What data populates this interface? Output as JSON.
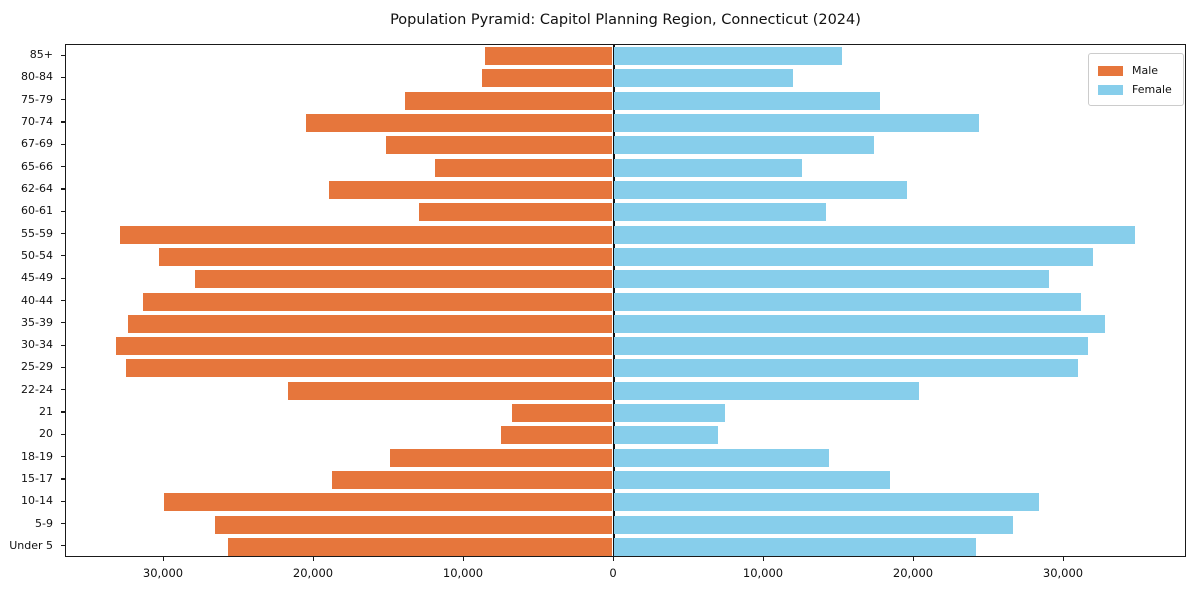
{
  "title": "Population Pyramid: Capitol Planning Region, Connecticut (2024)",
  "legend": {
    "male_label": "Male",
    "female_label": "Female"
  },
  "colors": {
    "male": "#e6763c",
    "female": "#87ceeb",
    "spine": "#1a1a1a",
    "zero_line": "#111111",
    "text": "#111111"
  },
  "chart_data": {
    "type": "bar",
    "subtype": "population-pyramid",
    "orientation": "horizontal-diverging",
    "title": "Population Pyramid: Capitol Planning Region, Connecticut (2024)",
    "categories_top_to_bottom": [
      "85+",
      "80-84",
      "75-79",
      "70-74",
      "67-69",
      "65-66",
      "62-64",
      "60-61",
      "55-59",
      "50-54",
      "45-49",
      "40-44",
      "35-39",
      "30-34",
      "25-29",
      "22-24",
      "21",
      "20",
      "18-19",
      "15-17",
      "10-14",
      "5-9",
      "Under 5"
    ],
    "series": [
      {
        "name": "Male",
        "side": "left",
        "color": "#e6763c",
        "values": [
          8500,
          8700,
          13800,
          20400,
          15100,
          11800,
          18900,
          12900,
          32800,
          30200,
          27800,
          31300,
          32300,
          33100,
          32400,
          21600,
          6700,
          7400,
          14800,
          18700,
          29900,
          26500,
          25600
        ]
      },
      {
        "name": "Female",
        "side": "right",
        "color": "#87ceeb",
        "values": [
          15200,
          11900,
          17700,
          24300,
          17300,
          12500,
          19500,
          14100,
          34700,
          31900,
          29000,
          31100,
          32700,
          31600,
          30900,
          20300,
          7400,
          6900,
          14300,
          18400,
          28300,
          26600,
          24100
        ]
      }
    ],
    "x_axis": {
      "tick_values": [
        -30000,
        -20000,
        -10000,
        0,
        10000,
        20000,
        30000
      ],
      "tick_labels": [
        "30,000",
        "20,000",
        "10,000",
        "0",
        "10,000",
        "20,000",
        "30,000"
      ],
      "xlim": [
        -36533,
        38200
      ]
    },
    "y_axis": {
      "tick_labels": [
        "85+",
        "80-84",
        "75-79",
        "70-74",
        "67-69",
        "65-66",
        "62-64",
        "60-61",
        "55-59",
        "50-54",
        "45-49",
        "40-44",
        "35-39",
        "30-34",
        "25-29",
        "22-24",
        "21",
        "20",
        "18-19",
        "15-17",
        "10-14",
        "5-9",
        "Under 5"
      ]
    },
    "legend": {
      "position": "upper-right",
      "entries": [
        "Male",
        "Female"
      ]
    },
    "grid": false,
    "zero_line": true
  }
}
